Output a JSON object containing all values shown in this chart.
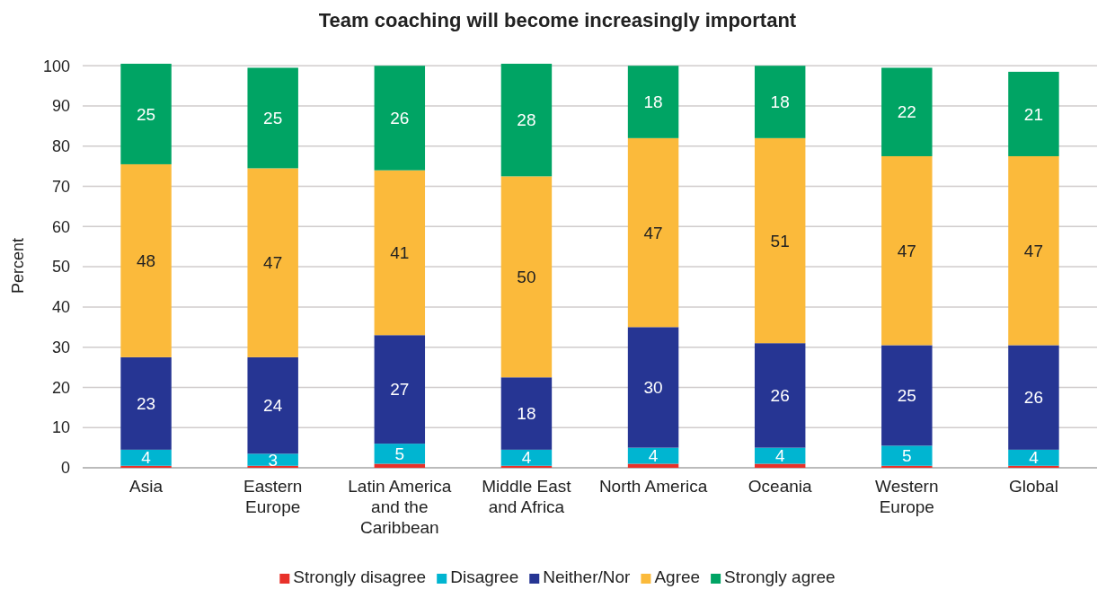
{
  "chart_data": {
    "type": "bar",
    "stacked": true,
    "title": "Team coaching will become increasingly important",
    "ylabel": "Percent",
    "categories": [
      "Asia",
      "Eastern Europe",
      "Latin America and the Caribbean",
      "Middle East and Africa",
      "North America",
      "Oceania",
      "Western Europe",
      "Global"
    ],
    "ylim": [
      0,
      100.5
    ],
    "yticks": [
      0,
      10,
      20,
      30,
      40,
      50,
      60,
      70,
      80,
      90,
      100
    ],
    "grid": "y",
    "legend": "bottom",
    "series": [
      {
        "name": "Strongly disagree",
        "color": "#e8312a",
        "values": [
          0.5,
          0.5,
          1,
          0.5,
          1,
          1,
          0.5,
          0.5
        ]
      },
      {
        "name": "Disagree",
        "color": "#00b5d1",
        "values": [
          4,
          3,
          5,
          4,
          4,
          4,
          5,
          4
        ],
        "value_labels": [
          "4",
          "3",
          "5",
          "4",
          "4",
          "4",
          "5",
          "4"
        ]
      },
      {
        "name": "Neither/Nor",
        "color": "#263593",
        "values": [
          23,
          24,
          27,
          18,
          30,
          26,
          25,
          26
        ],
        "value_labels": [
          "23",
          "24",
          "27",
          "18",
          "30",
          "26",
          "25",
          "26"
        ]
      },
      {
        "name": "Agree",
        "color": "#fbba3b",
        "values": [
          48,
          47,
          41,
          50,
          47,
          51,
          47,
          47
        ],
        "value_labels": [
          "48",
          "47",
          "41",
          "50",
          "47",
          "51",
          "47",
          "47"
        ]
      },
      {
        "name": "Strongly agree",
        "color": "#00a464",
        "values": [
          25,
          25,
          26,
          28,
          18,
          18,
          22,
          21
        ],
        "value_labels": [
          "25",
          "25",
          "26",
          "28",
          "18",
          "18",
          "22",
          "21"
        ]
      }
    ]
  }
}
